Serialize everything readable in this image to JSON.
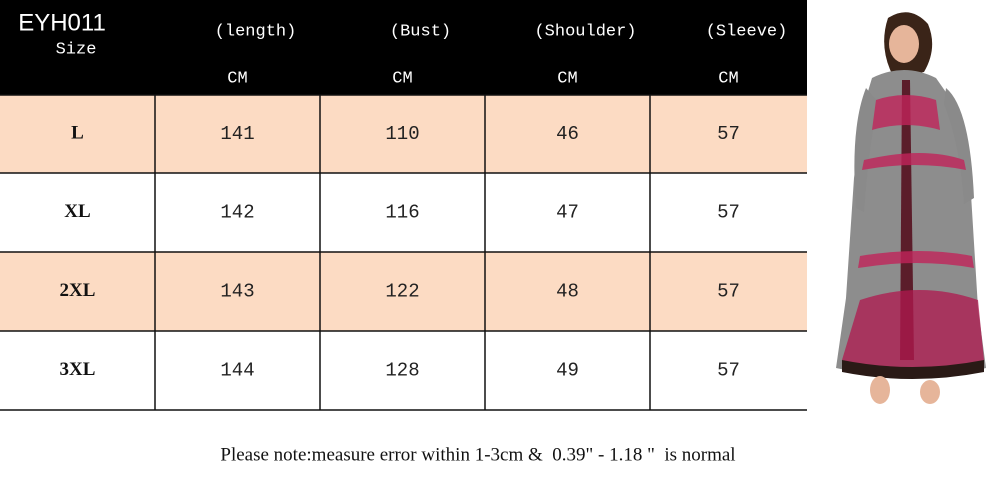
{
  "header": {
    "code": "EYH011",
    "size_label": "Size",
    "columns": [
      {
        "name": "(length)",
        "unit": "CM"
      },
      {
        "name": "(Bust)",
        "unit": "CM"
      },
      {
        "name": "(Shoulder)",
        "unit": "CM"
      },
      {
        "name": "(Sleeve)",
        "unit": "CM"
      }
    ]
  },
  "table": {
    "rows": [
      [
        "L",
        "141",
        "110",
        "46",
        "57"
      ],
      [
        "XL",
        "142",
        "116",
        "47",
        "57"
      ],
      [
        "2XL",
        "143",
        "122",
        "48",
        "57"
      ],
      [
        "3XL",
        "144",
        "128",
        "49",
        "57"
      ]
    ]
  },
  "note": "Please note:measure error within 1-3cm &  0.39\" - 1.18 \"  is normal"
}
